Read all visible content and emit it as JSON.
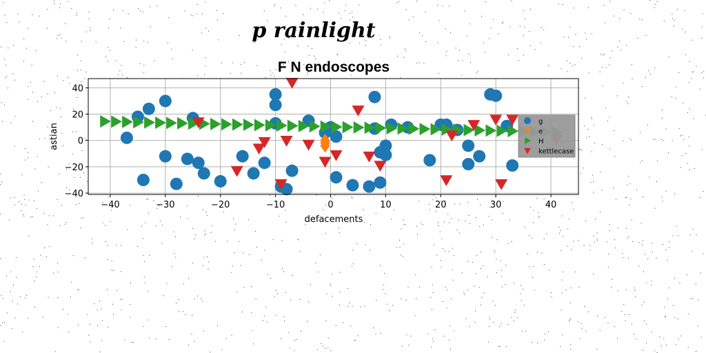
{
  "colors": {
    "g": "#1f77b4",
    "e": "#ff7f0e",
    "H": "#2ca02c",
    "kettlecase": "#d62728",
    "legend_bg": "#999999",
    "grid": "#b0b0b0"
  },
  "chart_data": {
    "type": "scatter",
    "suptitle": "p rainlight",
    "title": "F N endoscopes",
    "xlabel": "defacements",
    "ylabel": "astian",
    "xlim": [
      -44,
      45
    ],
    "ylim": [
      -41,
      47
    ],
    "xticks": [
      -40,
      -30,
      -20,
      -10,
      0,
      10,
      20,
      30,
      40
    ],
    "yticks": [
      -40,
      -20,
      0,
      20,
      40
    ],
    "grid": true,
    "legend_position": "right",
    "series": [
      {
        "name": "g",
        "marker": "circle",
        "x": [
          -37,
          -35,
          -33,
          -34,
          -30,
          -30,
          -28,
          -26,
          -25,
          -24,
          -23,
          -20,
          -16,
          -14,
          -12,
          -10,
          -10,
          -10,
          -9,
          -8,
          -7,
          -4,
          -1,
          0,
          1,
          1,
          4,
          7,
          8,
          8,
          9,
          9,
          10,
          10,
          11,
          14,
          18,
          20,
          21,
          23,
          25,
          25,
          27,
          29,
          30,
          32,
          33
        ],
        "y": [
          2,
          18,
          24,
          -30,
          30,
          -12,
          -33,
          -14,
          17,
          -17,
          -25,
          -31,
          -12,
          -25,
          -17,
          35,
          27,
          13,
          -35,
          -37,
          -23,
          15,
          6,
          10,
          -28,
          3,
          -34,
          -35,
          33,
          9,
          -32,
          -9,
          -4,
          -11,
          12,
          10,
          -15,
          12,
          12,
          8,
          -4,
          -18,
          -12,
          35,
          34,
          11,
          -19
        ]
      },
      {
        "name": "e",
        "marker": "diamond",
        "x": [
          -1,
          -1,
          -1
        ],
        "y": [
          0,
          -2,
          -4
        ]
      },
      {
        "name": "H",
        "marker": "triangle-right",
        "x": [
          -41,
          -39,
          -37,
          -35,
          -33,
          -31,
          -29,
          -27,
          -25,
          -23,
          -21,
          -19,
          -17,
          -15,
          -13,
          -11,
          -9,
          -7,
          -5,
          -3,
          -1,
          1,
          3,
          5,
          7,
          9,
          11,
          13,
          15,
          17,
          19,
          21,
          23,
          25,
          27,
          29,
          31,
          33,
          35,
          37,
          39,
          41
        ],
        "y": [
          14.5,
          14.3,
          14.1,
          13.9,
          13.7,
          13.5,
          13.3,
          13.1,
          12.9,
          12.7,
          12.5,
          12.3,
          12.1,
          11.9,
          11.7,
          11.5,
          11.3,
          11.1,
          10.9,
          10.7,
          10.5,
          10.3,
          10.1,
          9.9,
          9.7,
          9.5,
          9.3,
          9.1,
          8.9,
          8.7,
          8.5,
          8.3,
          8.1,
          7.9,
          7.7,
          7.5,
          7.3,
          7.1,
          6.9,
          6.7,
          6.5,
          6.3
        ]
      },
      {
        "name": "kettlecase",
        "marker": "triangle-down",
        "x": [
          -24,
          -17,
          -13,
          -12,
          -9,
          -8,
          -7,
          -4,
          -1,
          1,
          5,
          7,
          9,
          21,
          22,
          26,
          30,
          31,
          33,
          41
        ],
        "y": [
          14,
          -23,
          -6,
          -1,
          -33,
          0,
          44,
          -3,
          -16,
          -11,
          23,
          -12,
          -19,
          -30,
          4,
          12,
          16,
          -33,
          16,
          1
        ]
      }
    ]
  }
}
